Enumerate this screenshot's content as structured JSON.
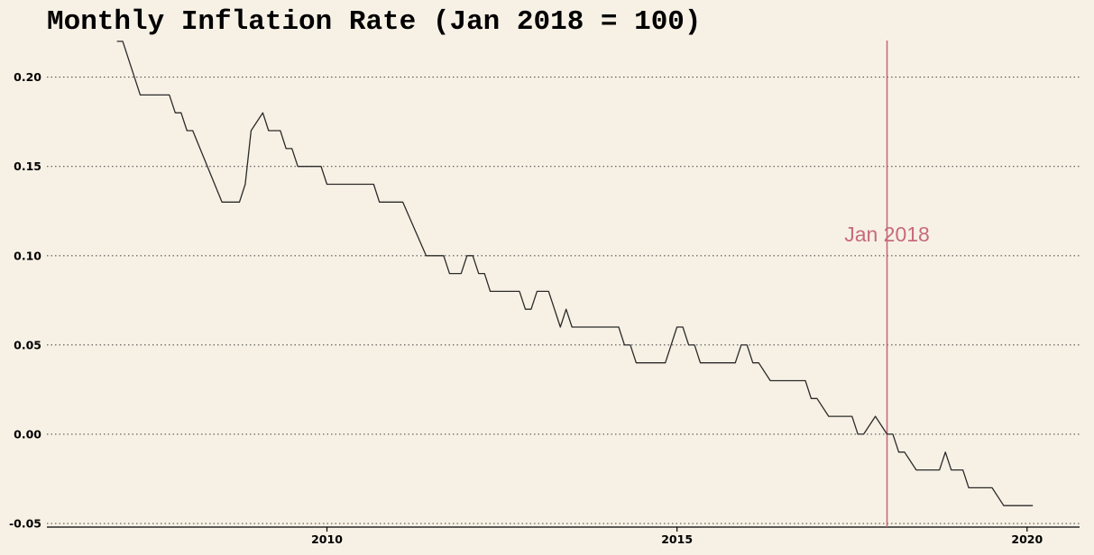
{
  "chart_data": {
    "type": "line",
    "title": "Monthly Inflation Rate (Jan 2018 = 100)",
    "xlabel": "",
    "ylabel": "",
    "x_ticks": [
      "2010",
      "2015",
      "2020"
    ],
    "y_ticks": [
      "0.20",
      "0.15",
      "0.10",
      "0.05",
      "0.00",
      "-0.05"
    ],
    "xlim": [
      "2006-01",
      "2020-10"
    ],
    "ylim": [
      -0.052,
      0.223
    ],
    "grid": "horizontal dotted",
    "legend": "none",
    "series": [
      {
        "line_color": "#2a2a2a",
        "points": [
          [
            "2007-01",
            0.22
          ],
          [
            "2007-02",
            0.22
          ],
          [
            "2007-05",
            0.19
          ],
          [
            "2007-10",
            0.19
          ],
          [
            "2007-11",
            0.18
          ],
          [
            "2007-12",
            0.18
          ],
          [
            "2008-01",
            0.17
          ],
          [
            "2008-02",
            0.17
          ],
          [
            "2008-07",
            0.13
          ],
          [
            "2008-10",
            0.13
          ],
          [
            "2008-11",
            0.14
          ],
          [
            "2008-12",
            0.17
          ],
          [
            "2009-02",
            0.18
          ],
          [
            "2009-03",
            0.17
          ],
          [
            "2009-05",
            0.17
          ],
          [
            "2009-06",
            0.16
          ],
          [
            "2009-07",
            0.16
          ],
          [
            "2009-08",
            0.15
          ],
          [
            "2009-12",
            0.15
          ],
          [
            "2010-01",
            0.14
          ],
          [
            "2010-09",
            0.14
          ],
          [
            "2010-10",
            0.13
          ],
          [
            "2011-02",
            0.13
          ],
          [
            "2011-06",
            0.1
          ],
          [
            "2011-09",
            0.1
          ],
          [
            "2011-10",
            0.09
          ],
          [
            "2011-12",
            0.09
          ],
          [
            "2012-01",
            0.1
          ],
          [
            "2012-02",
            0.1
          ],
          [
            "2012-03",
            0.09
          ],
          [
            "2012-04",
            0.09
          ],
          [
            "2012-05",
            0.08
          ],
          [
            "2012-10",
            0.08
          ],
          [
            "2012-11",
            0.07
          ],
          [
            "2012-12",
            0.07
          ],
          [
            "2013-01",
            0.08
          ],
          [
            "2013-03",
            0.08
          ],
          [
            "2013-05",
            0.06
          ],
          [
            "2013-06",
            0.07
          ],
          [
            "2013-07",
            0.06
          ],
          [
            "2014-03",
            0.06
          ],
          [
            "2014-04",
            0.05
          ],
          [
            "2014-05",
            0.05
          ],
          [
            "2014-06",
            0.04
          ],
          [
            "2014-11",
            0.04
          ],
          [
            "2015-01",
            0.06
          ],
          [
            "2015-02",
            0.06
          ],
          [
            "2015-03",
            0.05
          ],
          [
            "2015-04",
            0.05
          ],
          [
            "2015-05",
            0.04
          ],
          [
            "2015-11",
            0.04
          ],
          [
            "2015-12",
            0.05
          ],
          [
            "2016-01",
            0.05
          ],
          [
            "2016-02",
            0.04
          ],
          [
            "2016-03",
            0.04
          ],
          [
            "2016-05",
            0.03
          ],
          [
            "2016-11",
            0.03
          ],
          [
            "2016-12",
            0.02
          ],
          [
            "2017-01",
            0.02
          ],
          [
            "2017-03",
            0.01
          ],
          [
            "2017-07",
            0.01
          ],
          [
            "2017-08",
            0.0
          ],
          [
            "2017-09",
            0.0
          ],
          [
            "2017-11",
            0.01
          ],
          [
            "2018-01",
            0.0
          ],
          [
            "2018-02",
            0.0
          ],
          [
            "2018-03",
            -0.01
          ],
          [
            "2018-04",
            -0.01
          ],
          [
            "2018-06",
            -0.02
          ],
          [
            "2018-10",
            -0.02
          ],
          [
            "2018-11",
            -0.01
          ],
          [
            "2018-12",
            -0.02
          ],
          [
            "2019-02",
            -0.02
          ],
          [
            "2019-03",
            -0.03
          ],
          [
            "2019-07",
            -0.03
          ],
          [
            "2019-09",
            -0.04
          ],
          [
            "2020-02",
            -0.04
          ]
        ]
      }
    ],
    "annotations": [
      {
        "type": "vline",
        "x": "2018-01",
        "label": "Jan 2018",
        "color": "#c76a7e"
      }
    ]
  }
}
